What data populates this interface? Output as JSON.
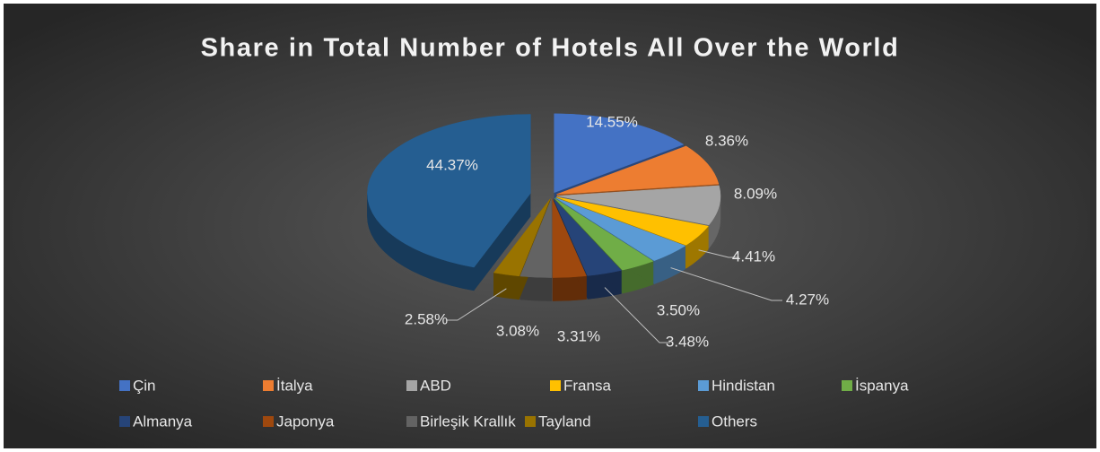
{
  "chart_data": {
    "type": "pie3d",
    "title": "Share in Total Number of Hotels All Over the World",
    "categories": [
      "Çin",
      "İtalya",
      "ABD",
      "Fransa",
      "Hindistan",
      "İspanya",
      "Almanya",
      "Japonya",
      "Birleşik Krallık",
      "Tayland",
      "Others"
    ],
    "values": [
      14.55,
      8.36,
      8.09,
      4.41,
      4.27,
      3.5,
      3.48,
      3.31,
      3.08,
      2.58,
      44.37
    ],
    "value_labels": [
      "14.55%",
      "8.36%",
      "8.09%",
      "4.41%",
      "4.27%",
      "3.50%",
      "3.48%",
      "3.31%",
      "3.08%",
      "2.58%",
      "44.37%"
    ],
    "colors": [
      "#4472c4",
      "#ed7d31",
      "#a5a5a5",
      "#ffc000",
      "#5b9bd5",
      "#70ad47",
      "#264478",
      "#9e480e",
      "#636363",
      "#997300",
      "#255e91"
    ],
    "legend": "bottom"
  }
}
